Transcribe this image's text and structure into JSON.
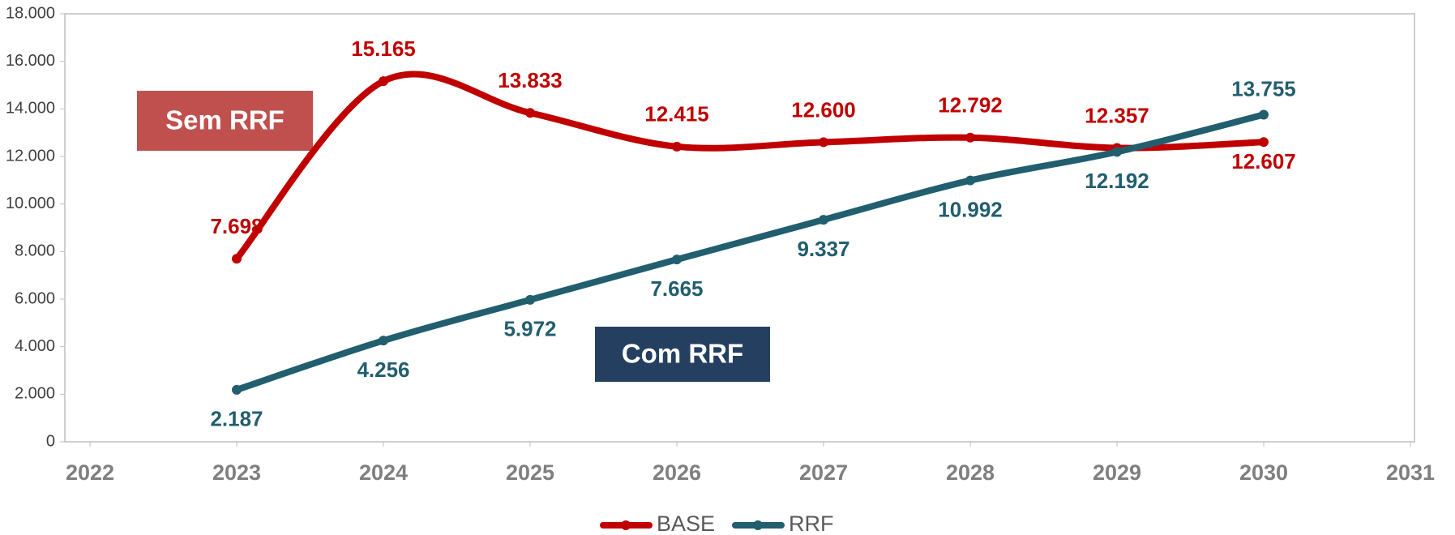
{
  "chart_data": {
    "type": "line",
    "x": [
      2023,
      2024,
      2025,
      2026,
      2027,
      2028,
      2029,
      2030
    ],
    "xlim": [
      2022,
      2031
    ],
    "xticks": [
      2022,
      2023,
      2024,
      2025,
      2026,
      2027,
      2028,
      2029,
      2030,
      2031
    ],
    "ylim": [
      0,
      18000
    ],
    "yticks": [
      0,
      {
        "value": 2000,
        "label": "2.000"
      },
      {
        "value": 4000,
        "label": "4.000"
      },
      {
        "value": 6000,
        "label": "6.000"
      },
      {
        "value": 8000,
        "label": "8.000"
      },
      {
        "value": 10000,
        "label": "10.000"
      },
      {
        "value": 12000,
        "label": "12.000"
      },
      {
        "value": 14000,
        "label": "14.000"
      },
      {
        "value": 16000,
        "label": "16.000"
      },
      {
        "value": 18000,
        "label": "18.000"
      }
    ],
    "smooth": true,
    "legend": "bottom",
    "annotations": [
      {
        "text": "Sem RRF",
        "color": "#c0504d"
      },
      {
        "text": "Com RRF",
        "color": "#243f60"
      }
    ],
    "series": [
      {
        "name": "BASE",
        "color": "#c00000",
        "values": [
          7698,
          15165,
          13833,
          12415,
          12600,
          12792,
          12357,
          12607
        ],
        "value_labels": [
          "7.698",
          "15.165",
          "13.833",
          "12.415",
          "12.600",
          "12.792",
          "12.357",
          "12.607"
        ]
      },
      {
        "name": "RRF",
        "color": "#215e6e",
        "values": [
          2187,
          4256,
          5972,
          7665,
          9337,
          10992,
          12192,
          13755
        ],
        "value_labels": [
          "2.187",
          "4.256",
          "5.972",
          "7.665",
          "9.337",
          "10.992",
          "12.192",
          "13.755"
        ]
      }
    ]
  }
}
